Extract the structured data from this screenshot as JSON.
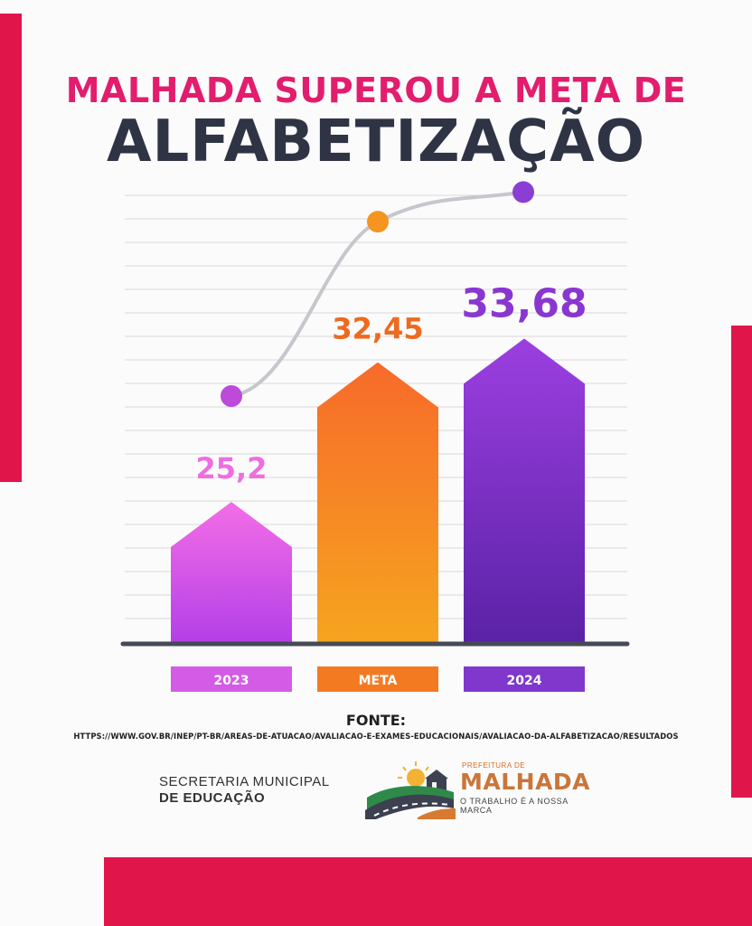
{
  "header": {
    "title_line1": "MALHADA SUPEROU A META DE",
    "title_line2": "ALFABETIZAÇÃO"
  },
  "chart_data": {
    "type": "bar",
    "categories": [
      "2023",
      "META",
      "2024"
    ],
    "values": [
      25.2,
      32.45,
      33.68
    ],
    "value_labels": [
      "25,2",
      "32,45",
      "33,68"
    ],
    "has_trend_line": true,
    "grid": true,
    "colors": {
      "2023": [
        "#f36ee6",
        "#b43fe8"
      ],
      "META": [
        "#f76a2a",
        "#f6a51f"
      ],
      "2024": [
        "#9c3fe0",
        "#5a22a6"
      ]
    },
    "label_colors": [
      "#ee6ee0",
      "#ee6a1f",
      "#8a36d0"
    ],
    "category_box_colors": [
      "#d45be6",
      "#f47a22",
      "#8038cc"
    ],
    "dot_colors": [
      "#bd4ad8",
      "#f5941f",
      "#8a3ed3"
    ]
  },
  "source": {
    "label": "FONTE:",
    "url": "HTTPS://WWW.GOV.BR/INEP/PT-BR/AREAS-DE-ATUACAO/AVALIACAO-E-EXAMES-EDUCACIONAIS/AVALIACAO-DA-ALFABETIZACAO/RESULTADOS"
  },
  "footer": {
    "secretaria_line1": "SECRETARIA MUNICIPAL",
    "secretaria_line2": "DE EDUCAÇÃO",
    "logo_small": "PREFEITURA DE",
    "logo_big": "MALHADA",
    "logo_tagline": "O TRABALHO É A NOSSA MARCA"
  },
  "accent_color": "#e0164a"
}
